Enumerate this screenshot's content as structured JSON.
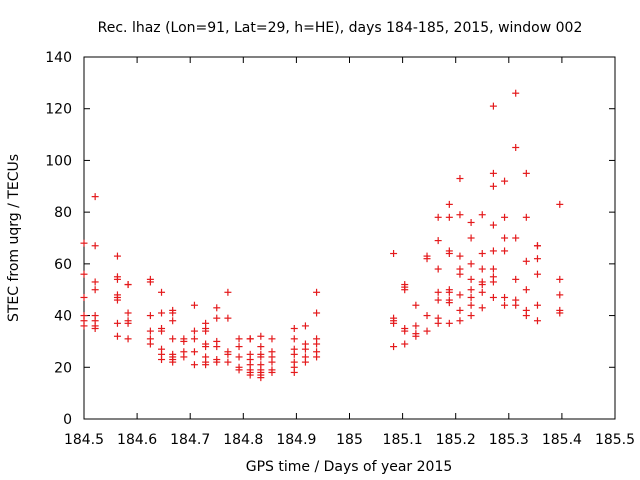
{
  "chart_data": {
    "type": "scatter",
    "title": "Rec. lhaz (Lon=91, Lat=29, h=HE), days 184-185, 2015, window 002",
    "xlabel": "GPS time / Days of year 2015",
    "ylabel": "STEC from uqrg / TECUs",
    "xlim": [
      184.5,
      185.5
    ],
    "ylim": [
      0,
      140
    ],
    "xticks": [
      184.5,
      184.6,
      184.7,
      184.8,
      184.9,
      185,
      185.1,
      185.2,
      185.3,
      185.4,
      185.5
    ],
    "xtick_labels": [
      "184.5",
      "184.6",
      "184.7",
      "184.8",
      "184.9",
      "185",
      "185.1",
      "185.2",
      "185.3",
      "185.4",
      "185.5"
    ],
    "yticks": [
      0,
      20,
      40,
      60,
      80,
      100,
      120,
      140
    ],
    "ytick_labels": [
      "0",
      "20",
      "40",
      "60",
      "80",
      "100",
      "120",
      "140"
    ],
    "grid": false,
    "marker": "plus",
    "color": "#e41a1c",
    "series": [
      {
        "name": "STEC",
        "points": [
          [
            184.5,
            68
          ],
          [
            184.5,
            56
          ],
          [
            184.5,
            47
          ],
          [
            184.5,
            40
          ],
          [
            184.5,
            38
          ],
          [
            184.5,
            36
          ],
          [
            184.521,
            86
          ],
          [
            184.521,
            67
          ],
          [
            184.521,
            53
          ],
          [
            184.521,
            50
          ],
          [
            184.521,
            40
          ],
          [
            184.521,
            38
          ],
          [
            184.521,
            36
          ],
          [
            184.521,
            35
          ],
          [
            184.563,
            63
          ],
          [
            184.563,
            55
          ],
          [
            184.563,
            54
          ],
          [
            184.563,
            48
          ],
          [
            184.563,
            47
          ],
          [
            184.563,
            46
          ],
          [
            184.563,
            37
          ],
          [
            184.563,
            32
          ],
          [
            184.583,
            52
          ],
          [
            184.583,
            52
          ],
          [
            184.583,
            41
          ],
          [
            184.583,
            38
          ],
          [
            184.583,
            37
          ],
          [
            184.583,
            31
          ],
          [
            184.625,
            54
          ],
          [
            184.625,
            53
          ],
          [
            184.625,
            40
          ],
          [
            184.625,
            34
          ],
          [
            184.625,
            31
          ],
          [
            184.625,
            29
          ],
          [
            184.646,
            49
          ],
          [
            184.646,
            41
          ],
          [
            184.646,
            35
          ],
          [
            184.646,
            34
          ],
          [
            184.646,
            27
          ],
          [
            184.646,
            25
          ],
          [
            184.646,
            23
          ],
          [
            184.667,
            42
          ],
          [
            184.667,
            41
          ],
          [
            184.667,
            38
          ],
          [
            184.667,
            31
          ],
          [
            184.667,
            25
          ],
          [
            184.667,
            24
          ],
          [
            184.667,
            23
          ],
          [
            184.667,
            22
          ],
          [
            184.688,
            31
          ],
          [
            184.688,
            30
          ],
          [
            184.688,
            26
          ],
          [
            184.688,
            24
          ],
          [
            184.708,
            44
          ],
          [
            184.708,
            34
          ],
          [
            184.708,
            31
          ],
          [
            184.708,
            26
          ],
          [
            184.708,
            21
          ],
          [
            184.729,
            37
          ],
          [
            184.729,
            35
          ],
          [
            184.729,
            34
          ],
          [
            184.729,
            29
          ],
          [
            184.729,
            28
          ],
          [
            184.729,
            24
          ],
          [
            184.729,
            22
          ],
          [
            184.729,
            21
          ],
          [
            184.75,
            43
          ],
          [
            184.75,
            39
          ],
          [
            184.75,
            30
          ],
          [
            184.75,
            28
          ],
          [
            184.75,
            23
          ],
          [
            184.75,
            22
          ],
          [
            184.771,
            49
          ],
          [
            184.771,
            39
          ],
          [
            184.771,
            26
          ],
          [
            184.771,
            25
          ],
          [
            184.771,
            22
          ],
          [
            184.792,
            31
          ],
          [
            184.792,
            28
          ],
          [
            184.792,
            24
          ],
          [
            184.792,
            20
          ],
          [
            184.792,
            19
          ],
          [
            184.813,
            31
          ],
          [
            184.813,
            31
          ],
          [
            184.813,
            25
          ],
          [
            184.813,
            23
          ],
          [
            184.813,
            21
          ],
          [
            184.813,
            19
          ],
          [
            184.813,
            18
          ],
          [
            184.813,
            17
          ],
          [
            184.833,
            32
          ],
          [
            184.833,
            28
          ],
          [
            184.833,
            25
          ],
          [
            184.833,
            24
          ],
          [
            184.833,
            21
          ],
          [
            184.833,
            19
          ],
          [
            184.833,
            18
          ],
          [
            184.833,
            17
          ],
          [
            184.833,
            16
          ],
          [
            184.854,
            31
          ],
          [
            184.854,
            26
          ],
          [
            184.854,
            24
          ],
          [
            184.854,
            22
          ],
          [
            184.854,
            19
          ],
          [
            184.854,
            18
          ],
          [
            184.896,
            35
          ],
          [
            184.896,
            31
          ],
          [
            184.896,
            27
          ],
          [
            184.896,
            25
          ],
          [
            184.896,
            22
          ],
          [
            184.896,
            20
          ],
          [
            184.896,
            18
          ],
          [
            184.917,
            36
          ],
          [
            184.917,
            29
          ],
          [
            184.917,
            27
          ],
          [
            184.917,
            24
          ],
          [
            184.917,
            22
          ],
          [
            184.938,
            49
          ],
          [
            184.938,
            41
          ],
          [
            184.938,
            31
          ],
          [
            184.938,
            29
          ],
          [
            184.938,
            26
          ],
          [
            184.938,
            24
          ],
          [
            185.083,
            64
          ],
          [
            185.083,
            39
          ],
          [
            185.083,
            38
          ],
          [
            185.083,
            37
          ],
          [
            185.083,
            28
          ],
          [
            185.104,
            52
          ],
          [
            185.104,
            51
          ],
          [
            185.104,
            50
          ],
          [
            185.104,
            35
          ],
          [
            185.104,
            34
          ],
          [
            185.104,
            29
          ],
          [
            185.125,
            44
          ],
          [
            185.125,
            36
          ],
          [
            185.125,
            33
          ],
          [
            185.125,
            32
          ],
          [
            185.146,
            63
          ],
          [
            185.146,
            62
          ],
          [
            185.146,
            40
          ],
          [
            185.146,
            34
          ],
          [
            185.167,
            78
          ],
          [
            185.167,
            69
          ],
          [
            185.167,
            58
          ],
          [
            185.167,
            49
          ],
          [
            185.167,
            46
          ],
          [
            185.167,
            39
          ],
          [
            185.167,
            37
          ],
          [
            185.188,
            83
          ],
          [
            185.188,
            78
          ],
          [
            185.188,
            65
          ],
          [
            185.188,
            64
          ],
          [
            185.188,
            50
          ],
          [
            185.188,
            49
          ],
          [
            185.188,
            46
          ],
          [
            185.188,
            45
          ],
          [
            185.188,
            37
          ],
          [
            185.208,
            93
          ],
          [
            185.208,
            79
          ],
          [
            185.208,
            63
          ],
          [
            185.208,
            58
          ],
          [
            185.208,
            56
          ],
          [
            185.208,
            48
          ],
          [
            185.208,
            42
          ],
          [
            185.208,
            38
          ],
          [
            185.229,
            76
          ],
          [
            185.229,
            70
          ],
          [
            185.229,
            60
          ],
          [
            185.229,
            54
          ],
          [
            185.229,
            50
          ],
          [
            185.229,
            47
          ],
          [
            185.229,
            44
          ],
          [
            185.229,
            40
          ],
          [
            185.25,
            79
          ],
          [
            185.25,
            64
          ],
          [
            185.25,
            58
          ],
          [
            185.25,
            53
          ],
          [
            185.25,
            52
          ],
          [
            185.25,
            49
          ],
          [
            185.25,
            43
          ],
          [
            185.271,
            121
          ],
          [
            185.271,
            95
          ],
          [
            185.271,
            90
          ],
          [
            185.271,
            75
          ],
          [
            185.271,
            65
          ],
          [
            185.271,
            58
          ],
          [
            185.271,
            55
          ],
          [
            185.271,
            53
          ],
          [
            185.271,
            47
          ],
          [
            185.292,
            92
          ],
          [
            185.292,
            78
          ],
          [
            185.292,
            70
          ],
          [
            185.292,
            65
          ],
          [
            185.292,
            47
          ],
          [
            185.292,
            44
          ],
          [
            185.313,
            126
          ],
          [
            185.313,
            105
          ],
          [
            185.313,
            70
          ],
          [
            185.313,
            54
          ],
          [
            185.313,
            46
          ],
          [
            185.313,
            44
          ],
          [
            185.333,
            95
          ],
          [
            185.333,
            78
          ],
          [
            185.333,
            61
          ],
          [
            185.333,
            50
          ],
          [
            185.333,
            42
          ],
          [
            185.333,
            40
          ],
          [
            185.354,
            67
          ],
          [
            185.354,
            67
          ],
          [
            185.354,
            62
          ],
          [
            185.354,
            56
          ],
          [
            185.354,
            44
          ],
          [
            185.354,
            38
          ],
          [
            185.396,
            83
          ],
          [
            185.396,
            54
          ],
          [
            185.396,
            48
          ],
          [
            185.396,
            42
          ],
          [
            185.396,
            41
          ]
        ]
      }
    ]
  }
}
